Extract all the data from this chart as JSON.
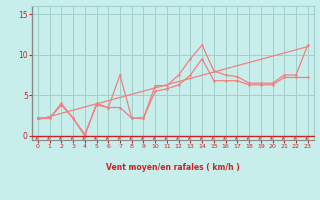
{
  "x": [
    0,
    1,
    2,
    3,
    4,
    5,
    6,
    7,
    8,
    9,
    10,
    11,
    12,
    13,
    14,
    15,
    16,
    17,
    18,
    19,
    20,
    21,
    22,
    23
  ],
  "line_gust_y": [
    2.2,
    2.2,
    4.0,
    2.2,
    0.0,
    4.0,
    3.5,
    7.5,
    2.2,
    2.2,
    6.2,
    6.2,
    7.5,
    9.5,
    11.2,
    8.0,
    7.5,
    7.3,
    6.5,
    6.5,
    6.5,
    7.5,
    7.5,
    11.2
  ],
  "line_avg_y": [
    2.2,
    2.2,
    3.8,
    2.2,
    0.2,
    3.8,
    3.5,
    3.5,
    2.2,
    2.2,
    5.5,
    5.8,
    6.3,
    7.5,
    9.5,
    6.8,
    6.8,
    6.8,
    6.3,
    6.3,
    6.3,
    7.2,
    7.2,
    7.2
  ],
  "trend_x": [
    0,
    23
  ],
  "trend_y": [
    2.0,
    11.0
  ],
  "line_color": "#f08080",
  "bg_color": "#c8eeec",
  "grid_color": "#a0d0cc",
  "label_color": "#cc2222",
  "spine_color": "#888888",
  "xlabel": "Vent moyen/en rafales ( km/h )",
  "xlim": [
    -0.5,
    23.5
  ],
  "ylim": [
    -0.5,
    16
  ],
  "yticks": [
    0,
    5,
    10,
    15
  ],
  "xticks": [
    0,
    1,
    2,
    3,
    4,
    5,
    6,
    7,
    8,
    9,
    10,
    11,
    12,
    13,
    14,
    15,
    16,
    17,
    18,
    19,
    20,
    21,
    22,
    23
  ]
}
